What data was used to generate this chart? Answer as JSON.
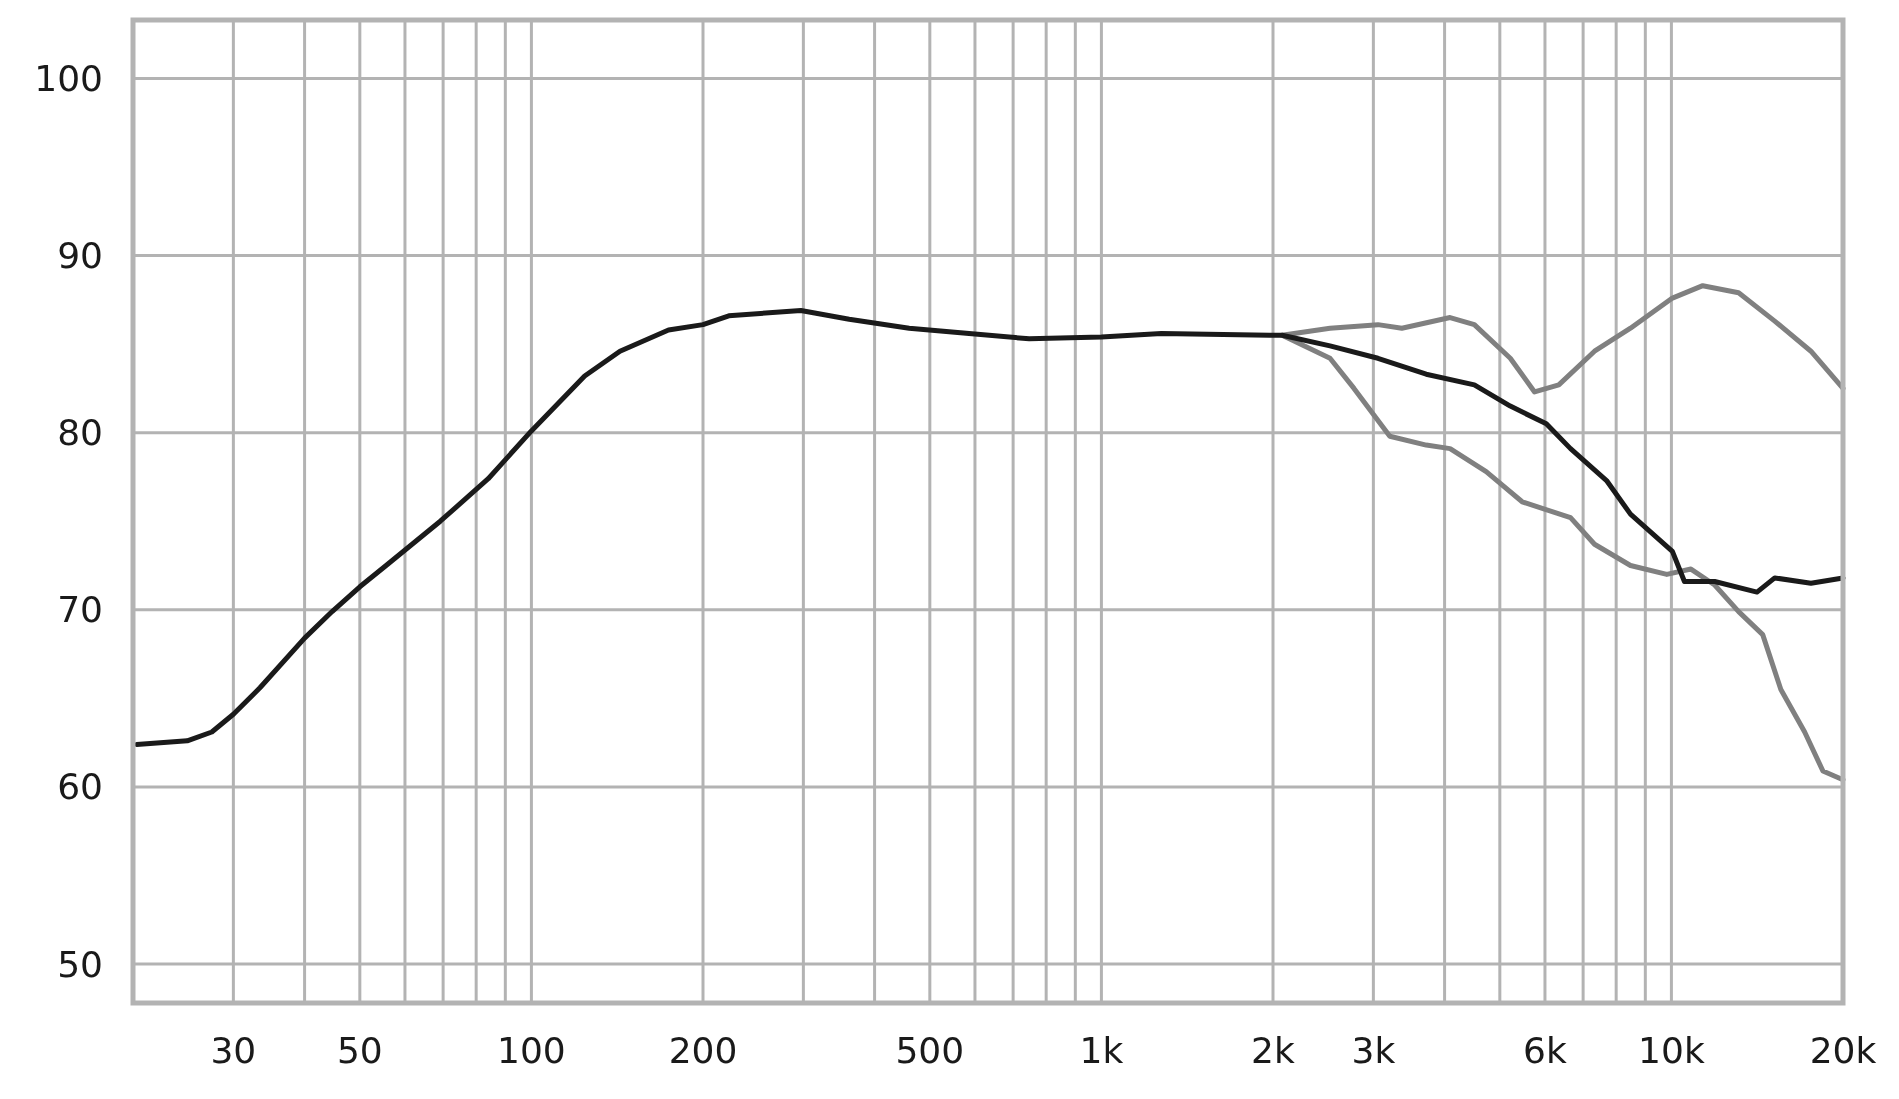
{
  "chart_data": {
    "type": "line",
    "log": "x",
    "grid": true,
    "xlim": [
      20,
      20000
    ],
    "ylim": [
      47.8,
      103.3
    ],
    "yticks": [
      50,
      60,
      70,
      80,
      90,
      100
    ],
    "xticks": [
      {
        "value": 30,
        "label": "30"
      },
      {
        "value": 40,
        "label": null
      },
      {
        "value": 50,
        "label": "50"
      },
      {
        "value": 60,
        "label": null
      },
      {
        "value": 70,
        "label": null
      },
      {
        "value": 80,
        "label": null
      },
      {
        "value": 90,
        "label": null
      },
      {
        "value": 100,
        "label": "100"
      },
      {
        "value": 200,
        "label": "200"
      },
      {
        "value": 300,
        "label": null
      },
      {
        "value": 400,
        "label": null
      },
      {
        "value": 500,
        "label": "500"
      },
      {
        "value": 600,
        "label": null
      },
      {
        "value": 700,
        "label": null
      },
      {
        "value": 800,
        "label": null
      },
      {
        "value": 900,
        "label": null
      },
      {
        "value": 1000,
        "label": "1k"
      },
      {
        "value": 2000,
        "label": "2k"
      },
      {
        "value": 3000,
        "label": "3k"
      },
      {
        "value": 4000,
        "label": null
      },
      {
        "value": 5000,
        "label": null
      },
      {
        "value": 6000,
        "label": "6k"
      },
      {
        "value": 7000,
        "label": null
      },
      {
        "value": 8000,
        "label": null
      },
      {
        "value": 9000,
        "label": null
      },
      {
        "value": 10000,
        "label": "10k"
      },
      {
        "value": 20000,
        "label": "20k"
      }
    ],
    "marker": "none",
    "line_style": "solid",
    "series": [
      {
        "color": "#808080",
        "x": [
          2075,
          2518,
          3056,
          3366,
          4090,
          4511,
          5216,
          5753,
          6345,
          7330,
          8476,
          10040,
          11350,
          13120,
          15180,
          17570,
          20000
        ],
        "values": [
          85.5,
          85.9,
          86.1,
          85.9,
          86.5,
          86.1,
          84.2,
          82.3,
          82.7,
          84.6,
          85.9,
          87.6,
          88.3,
          87.9,
          86.3,
          84.6,
          82.5
        ]
      },
      {
        "color": "#808080",
        "x": [
          2075,
          2518,
          2774,
          3206,
          3714,
          4090,
          4732,
          5472,
          6653,
          7330,
          8476,
          9815,
          10820,
          11910,
          13120,
          14460,
          15560,
          17130,
          18440,
          20000
        ],
        "values": [
          85.5,
          84.2,
          82.5,
          79.8,
          79.3,
          79.1,
          77.8,
          76.1,
          75.2,
          73.7,
          72.5,
          72.0,
          72.3,
          71.4,
          69.9,
          68.6,
          65.5,
          63.1,
          60.9,
          60.4
        ]
      },
      {
        "color": "#1a1a1a",
        "x": [
          20.3,
          24.9,
          27.5,
          30,
          33.4,
          40,
          44.7,
          50,
          55.6,
          69.2,
          84,
          100,
          124,
          143,
          174,
          200,
          222,
          297,
          361,
          460,
          586,
          747,
          1000,
          1274,
          1972,
          2075,
          2518,
          3056,
          3714,
          4511,
          5216,
          6033,
          6653,
          7695,
          8476,
          10040,
          10540,
          11910,
          14130,
          15180,
          17570,
          20000
        ],
        "values": [
          62.4,
          62.6,
          63.1,
          64.1,
          65.6,
          68.4,
          69.9,
          71.3,
          72.5,
          75.0,
          77.4,
          80.1,
          83.2,
          84.6,
          85.8,
          86.1,
          86.6,
          86.9,
          86.4,
          85.9,
          85.6,
          85.3,
          85.4,
          85.6,
          85.5,
          85.5,
          84.9,
          84.2,
          83.3,
          82.7,
          81.5,
          80.5,
          79.1,
          77.3,
          75.4,
          73.3,
          71.6,
          71.6,
          71.0,
          71.8,
          71.5,
          71.8
        ]
      }
    ]
  }
}
